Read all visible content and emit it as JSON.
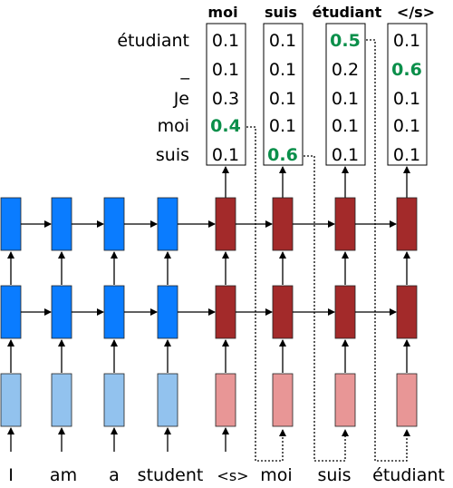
{
  "columns": [
    {
      "header": "moi",
      "values": [
        "0.1",
        "0.1",
        "0.3",
        "0.4",
        "0.1"
      ],
      "highlight": 3
    },
    {
      "header": "suis",
      "values": [
        "0.1",
        "0.1",
        "0.1",
        "0.1",
        "0.6"
      ],
      "highlight": 4
    },
    {
      "header": "étudiant",
      "values": [
        "0.5",
        "0.2",
        "0.1",
        "0.1",
        "0.1"
      ],
      "highlight": 0
    },
    {
      "header": "</s>",
      "values": [
        "0.1",
        "0.6",
        "0.1",
        "0.1",
        "0.1"
      ],
      "highlight": 1
    }
  ],
  "vocab": [
    "étudiant",
    "_",
    "Je",
    "moi",
    "suis"
  ],
  "source_tokens": [
    "I",
    "am",
    "a",
    "student"
  ],
  "target_inputs": [
    "<s>",
    "moi",
    "suis",
    "étudiant"
  ],
  "colors": {
    "encoder_hidden": "#0a7cff",
    "encoder_embed": "#92c2ee",
    "decoder_hidden": "#a32a2a",
    "decoder_embed": "#e89696",
    "highlight": "#0a8f4a"
  }
}
